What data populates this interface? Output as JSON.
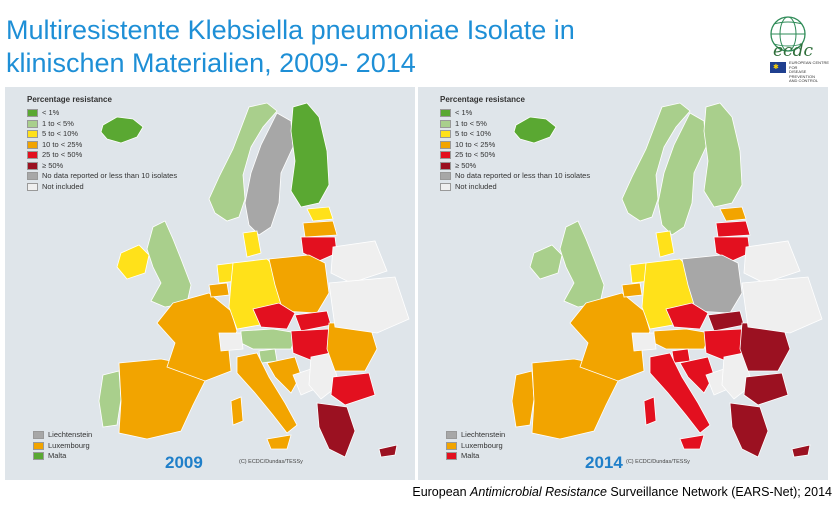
{
  "title_lines": [
    "Multiresistente Klebsiella pneumoniae Isolate in",
    "klinischen Materialien, 2009- 2014"
  ],
  "logo": {
    "text": "ecdc",
    "agency_lines": [
      "EUROPEAN CENTRE FOR",
      "DISEASE PREVENTION",
      "AND CONTROL"
    ]
  },
  "colors": {
    "lt1": "#5aa832",
    "1to5": "#a9cf8c",
    "5to10": "#ffe11a",
    "10to25": "#f2a400",
    "25to50": "#e3101f",
    "ge50": "#9b1121",
    "nodata": "#a7a7a7",
    "notincl": "#efefef",
    "sea": "#dfe5ea",
    "title": "#1e8fd6",
    "year": "#1f7fc9"
  },
  "legend": {
    "title": "Percentage resistance",
    "items": [
      {
        "label": "< 1%",
        "key": "lt1"
      },
      {
        "label": "1 to < 5%",
        "key": "1to5"
      },
      {
        "label": "5 to < 10%",
        "key": "5to10"
      },
      {
        "label": "10 to < 25%",
        "key": "10to25"
      },
      {
        "label": "25 to < 50%",
        "key": "25to50"
      },
      {
        "label": "≥ 50%",
        "key": "ge50"
      },
      {
        "label": "No data reported or less than 10 isolates",
        "key": "nodata"
      },
      {
        "label": "Not included",
        "key": "notincl"
      }
    ]
  },
  "maps": [
    {
      "year": "2009",
      "copyright": "(C) ECDC/Dundas/TESSy",
      "small_states": [
        {
          "label": "Liechtenstein",
          "key": "nodata"
        },
        {
          "label": "Luxembourg",
          "key": "10to25"
        },
        {
          "label": "Malta",
          "key": "lt1"
        }
      ],
      "countries": {
        "iceland": "lt1",
        "norway": "1to5",
        "sweden": "nodata",
        "finland": "lt1",
        "estonia": "5to10",
        "latvia": "10to25",
        "lithuania": "25to50",
        "ireland": "5to10",
        "uk": "1to5",
        "portugal": "1to5",
        "spain": "10to25",
        "france": "10to25",
        "belgium": "10to25",
        "netherlands": "5to10",
        "germany": "5to10",
        "denmark": "5to10",
        "poland": "10to25",
        "czechia": "25to50",
        "slovakia": "25to50",
        "austria": "1to5",
        "switzerland": "notincl",
        "hungary": "25to50",
        "slovenia": "1to5",
        "croatia": "10to25",
        "bih": "notincl",
        "serbia": "notincl",
        "romania": "10to25",
        "bulgaria": "25to50",
        "greece": "ge50",
        "italy": "10to25",
        "sardinia": "10to25",
        "sicily": "10to25",
        "cyprus": "ge50",
        "belarus": "notincl",
        "ukraine": "notincl"
      }
    },
    {
      "year": "2014",
      "copyright": "(C) ECDC/Dundas/TESSy",
      "small_states": [
        {
          "label": "Liechtenstein",
          "key": "nodata"
        },
        {
          "label": "Luxembourg",
          "key": "10to25"
        },
        {
          "label": "Malta",
          "key": "25to50"
        }
      ],
      "countries": {
        "iceland": "lt1",
        "norway": "1to5",
        "sweden": "1to5",
        "finland": "1to5",
        "estonia": "10to25",
        "latvia": "25to50",
        "lithuania": "25to50",
        "ireland": "1to5",
        "uk": "1to5",
        "portugal": "10to25",
        "spain": "10to25",
        "france": "10to25",
        "belgium": "10to25",
        "netherlands": "5to10",
        "germany": "5to10",
        "denmark": "5to10",
        "poland": "nodata",
        "czechia": "25to50",
        "slovakia": "ge50",
        "austria": "10to25",
        "switzerland": "notincl",
        "hungary": "25to50",
        "slovenia": "25to50",
        "croatia": "25to50",
        "bih": "notincl",
        "serbia": "notincl",
        "romania": "ge50",
        "bulgaria": "ge50",
        "greece": "ge50",
        "italy": "25to50",
        "sardinia": "25to50",
        "sicily": "25to50",
        "cyprus": "ge50",
        "belarus": "notincl",
        "ukraine": "notincl"
      }
    }
  ],
  "source": {
    "prefix": "European ",
    "italic": "Antimicrobial Resistance",
    "suffix": " Surveillance Network (EARS-Net); 2014"
  }
}
